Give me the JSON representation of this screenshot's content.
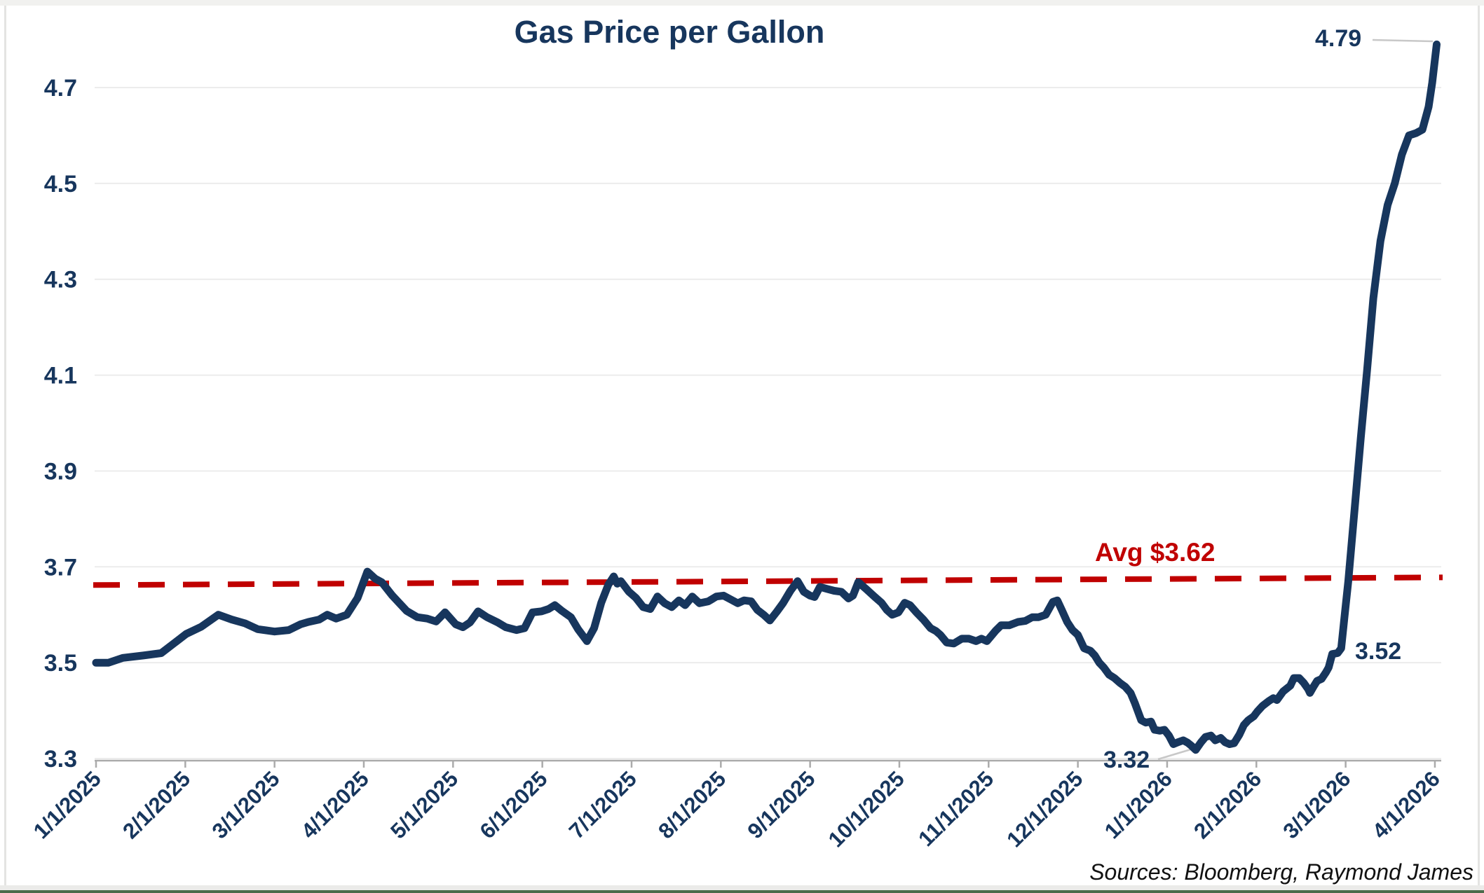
{
  "title": "Gas Price per Gallon",
  "source_note": "Sources: Bloomberg, Raymond James",
  "annotations": {
    "avg_label": "Avg $3.62",
    "end_value": "4.79",
    "pre_spike_value": "3.52",
    "min_value": "3.32"
  },
  "colors": {
    "line": "#17365D",
    "avg_line": "#C00000",
    "label_text": "#17365D",
    "gridline": "#ECECEC",
    "axis": "#ABABAB",
    "leader": "#C8C8C8",
    "bottom_accent": "#4A6B4A"
  },
  "chart_data": {
    "type": "line",
    "title": "Gas Price per Gallon",
    "xlabel": "",
    "ylabel": "",
    "grid": "horizontal",
    "legend": false,
    "x_tick_labels": [
      "1/1/2025",
      "2/1/2025",
      "3/1/2025",
      "4/1/2025",
      "5/1/2025",
      "6/1/2025",
      "7/1/2025",
      "8/1/2025",
      "9/1/2025",
      "10/1/2025",
      "11/1/2025",
      "12/1/2025",
      "1/1/2026",
      "2/1/2026",
      "3/1/2026",
      "4/1/2026"
    ],
    "y_ticks": [
      3.3,
      3.5,
      3.7,
      3.9,
      4.1,
      4.3,
      4.5,
      4.7
    ],
    "ylim": [
      3.3,
      4.79
    ],
    "avg_line": {
      "label": "Avg $3.62",
      "value": 3.62,
      "style": "dashed",
      "color": "#C00000",
      "draw_from": 3.662,
      "draw_to": 3.678
    },
    "callouts": [
      {
        "text": "4.79",
        "at_month": 15.02,
        "at_value": 4.79
      },
      {
        "text": "3.52",
        "at_month": 13.91,
        "at_value": 3.52
      },
      {
        "text": "3.32",
        "at_month": 12.32,
        "at_value": 3.32
      }
    ],
    "series": [
      {
        "name": "Gas price per gallon (USD)",
        "color": "#17365D",
        "x_unit": "months since 1/1/2025",
        "points": [
          [
            0.0,
            3.5
          ],
          [
            0.14,
            3.5
          ],
          [
            0.3,
            3.51
          ],
          [
            0.53,
            3.515
          ],
          [
            0.73,
            3.52
          ],
          [
            0.87,
            3.54
          ],
          [
            1.01,
            3.56
          ],
          [
            1.18,
            3.575
          ],
          [
            1.37,
            3.6
          ],
          [
            1.52,
            3.59
          ],
          [
            1.67,
            3.582
          ],
          [
            1.81,
            3.57
          ],
          [
            2.0,
            3.565
          ],
          [
            2.16,
            3.568
          ],
          [
            2.29,
            3.58
          ],
          [
            2.38,
            3.585
          ],
          [
            2.5,
            3.59
          ],
          [
            2.59,
            3.6
          ],
          [
            2.69,
            3.592
          ],
          [
            2.81,
            3.6
          ],
          [
            2.93,
            3.635
          ],
          [
            3.04,
            3.69
          ],
          [
            3.13,
            3.675
          ],
          [
            3.2,
            3.668
          ],
          [
            3.32,
            3.64
          ],
          [
            3.48,
            3.608
          ],
          [
            3.6,
            3.595
          ],
          [
            3.71,
            3.592
          ],
          [
            3.81,
            3.586
          ],
          [
            3.91,
            3.605
          ],
          [
            4.03,
            3.58
          ],
          [
            4.11,
            3.574
          ],
          [
            4.19,
            3.584
          ],
          [
            4.28,
            3.607
          ],
          [
            4.38,
            3.595
          ],
          [
            4.5,
            3.584
          ],
          [
            4.59,
            3.574
          ],
          [
            4.71,
            3.568
          ],
          [
            4.8,
            3.572
          ],
          [
            4.89,
            3.605
          ],
          [
            4.99,
            3.607
          ],
          [
            5.07,
            3.612
          ],
          [
            5.14,
            3.62
          ],
          [
            5.22,
            3.608
          ],
          [
            5.32,
            3.595
          ],
          [
            5.4,
            3.57
          ],
          [
            5.5,
            3.545
          ],
          [
            5.58,
            3.572
          ],
          [
            5.66,
            3.625
          ],
          [
            5.74,
            3.663
          ],
          [
            5.8,
            3.68
          ],
          [
            5.84,
            3.665
          ],
          [
            5.88,
            3.67
          ],
          [
            5.97,
            3.648
          ],
          [
            6.05,
            3.635
          ],
          [
            6.13,
            3.616
          ],
          [
            6.21,
            3.612
          ],
          [
            6.29,
            3.638
          ],
          [
            6.37,
            3.624
          ],
          [
            6.45,
            3.616
          ],
          [
            6.53,
            3.63
          ],
          [
            6.6,
            3.62
          ],
          [
            6.68,
            3.638
          ],
          [
            6.76,
            3.624
          ],
          [
            6.86,
            3.628
          ],
          [
            6.95,
            3.638
          ],
          [
            7.03,
            3.64
          ],
          [
            7.11,
            3.632
          ],
          [
            7.19,
            3.624
          ],
          [
            7.26,
            3.63
          ],
          [
            7.34,
            3.628
          ],
          [
            7.41,
            3.61
          ],
          [
            7.48,
            3.6
          ],
          [
            7.55,
            3.588
          ],
          [
            7.63,
            3.607
          ],
          [
            7.7,
            3.625
          ],
          [
            7.78,
            3.65
          ],
          [
            7.86,
            3.67
          ],
          [
            7.93,
            3.648
          ],
          [
            8.0,
            3.64
          ],
          [
            8.05,
            3.637
          ],
          [
            8.11,
            3.658
          ],
          [
            8.19,
            3.654
          ],
          [
            8.27,
            3.65
          ],
          [
            8.35,
            3.648
          ],
          [
            8.43,
            3.634
          ],
          [
            8.48,
            3.64
          ],
          [
            8.54,
            3.668
          ],
          [
            8.62,
            3.655
          ],
          [
            8.72,
            3.638
          ],
          [
            8.8,
            3.625
          ],
          [
            8.86,
            3.61
          ],
          [
            8.92,
            3.6
          ],
          [
            8.99,
            3.605
          ],
          [
            9.06,
            3.625
          ],
          [
            9.12,
            3.62
          ],
          [
            9.19,
            3.605
          ],
          [
            9.27,
            3.59
          ],
          [
            9.35,
            3.572
          ],
          [
            9.41,
            3.566
          ],
          [
            9.46,
            3.558
          ],
          [
            9.53,
            3.542
          ],
          [
            9.61,
            3.54
          ],
          [
            9.7,
            3.55
          ],
          [
            9.78,
            3.55
          ],
          [
            9.86,
            3.545
          ],
          [
            9.92,
            3.55
          ],
          [
            9.98,
            3.545
          ],
          [
            10.08,
            3.567
          ],
          [
            10.14,
            3.578
          ],
          [
            10.23,
            3.578
          ],
          [
            10.33,
            3.585
          ],
          [
            10.41,
            3.587
          ],
          [
            10.49,
            3.595
          ],
          [
            10.56,
            3.595
          ],
          [
            10.64,
            3.6
          ],
          [
            10.72,
            3.627
          ],
          [
            10.77,
            3.63
          ],
          [
            10.82,
            3.61
          ],
          [
            10.88,
            3.585
          ],
          [
            10.94,
            3.568
          ],
          [
            11.0,
            3.558
          ],
          [
            11.07,
            3.53
          ],
          [
            11.14,
            3.525
          ],
          [
            11.19,
            3.515
          ],
          [
            11.24,
            3.5
          ],
          [
            11.29,
            3.49
          ],
          [
            11.35,
            3.475
          ],
          [
            11.41,
            3.468
          ],
          [
            11.47,
            3.458
          ],
          [
            11.53,
            3.45
          ],
          [
            11.59,
            3.437
          ],
          [
            11.64,
            3.415
          ],
          [
            11.71,
            3.38
          ],
          [
            11.76,
            3.375
          ],
          [
            11.82,
            3.377
          ],
          [
            11.86,
            3.36
          ],
          [
            11.92,
            3.358
          ],
          [
            11.97,
            3.36
          ],
          [
            12.02,
            3.348
          ],
          [
            12.07,
            3.33
          ],
          [
            12.12,
            3.334
          ],
          [
            12.18,
            3.338
          ],
          [
            12.23,
            3.333
          ],
          [
            12.27,
            3.327
          ],
          [
            12.32,
            3.318
          ],
          [
            12.38,
            3.334
          ],
          [
            12.43,
            3.345
          ],
          [
            12.49,
            3.348
          ],
          [
            12.54,
            3.338
          ],
          [
            12.6,
            3.343
          ],
          [
            12.65,
            3.334
          ],
          [
            12.7,
            3.33
          ],
          [
            12.75,
            3.332
          ],
          [
            12.81,
            3.35
          ],
          [
            12.86,
            3.37
          ],
          [
            12.91,
            3.38
          ],
          [
            12.97,
            3.388
          ],
          [
            13.01,
            3.398
          ],
          [
            13.07,
            3.41
          ],
          [
            13.14,
            3.42
          ],
          [
            13.19,
            3.426
          ],
          [
            13.23,
            3.422
          ],
          [
            13.3,
            3.44
          ],
          [
            13.38,
            3.452
          ],
          [
            13.42,
            3.468
          ],
          [
            13.48,
            3.468
          ],
          [
            13.53,
            3.458
          ],
          [
            13.58,
            3.445
          ],
          [
            13.6,
            3.437
          ],
          [
            13.64,
            3.45
          ],
          [
            13.68,
            3.462
          ],
          [
            13.73,
            3.466
          ],
          [
            13.78,
            3.48
          ],
          [
            13.81,
            3.49
          ],
          [
            13.85,
            3.518
          ],
          [
            13.91,
            3.52
          ],
          [
            13.95,
            3.53
          ],
          [
            13.99,
            3.6
          ],
          [
            14.03,
            3.67
          ],
          [
            14.1,
            3.82
          ],
          [
            14.17,
            3.97
          ],
          [
            14.24,
            4.11
          ],
          [
            14.31,
            4.26
          ],
          [
            14.39,
            4.38
          ],
          [
            14.47,
            4.455
          ],
          [
            14.55,
            4.5
          ],
          [
            14.63,
            4.56
          ],
          [
            14.71,
            4.6
          ],
          [
            14.79,
            4.605
          ],
          [
            14.86,
            4.612
          ],
          [
            14.93,
            4.66
          ],
          [
            14.97,
            4.71
          ],
          [
            15.02,
            4.79
          ]
        ]
      }
    ]
  }
}
